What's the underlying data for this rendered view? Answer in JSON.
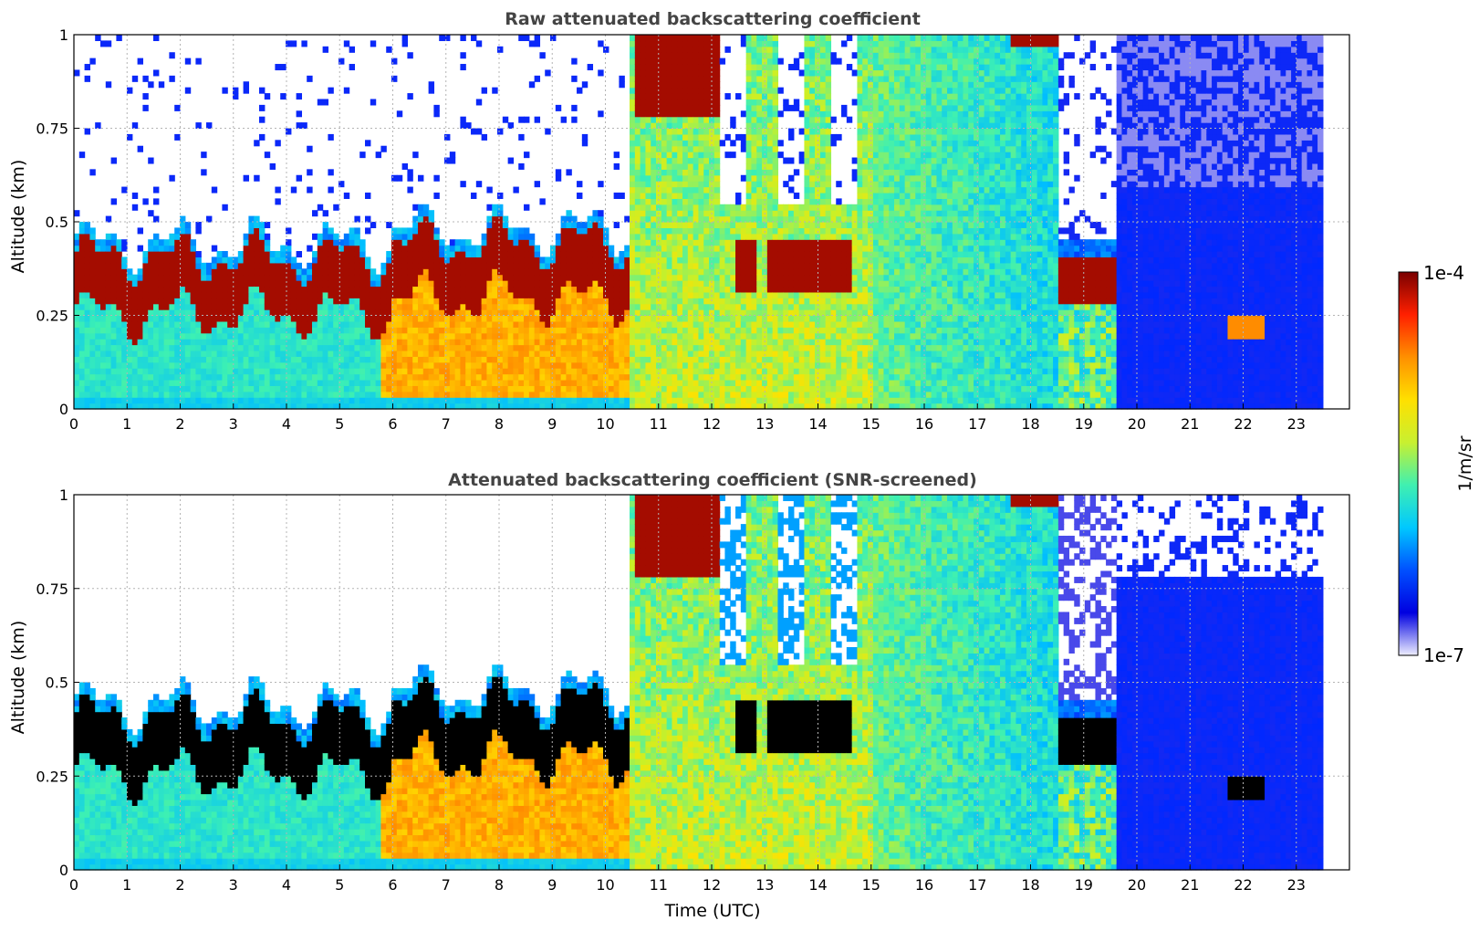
{
  "chart_data": [
    {
      "type": "heatmap",
      "title": "Raw attenuated backscattering coefficient",
      "xlabel": "",
      "ylabel": "Altitude (km)",
      "xlim": [
        0,
        24
      ],
      "ylim": [
        0,
        1
      ],
      "x_ticks": [
        "0",
        "1",
        "2",
        "3",
        "4",
        "5",
        "6",
        "7",
        "8",
        "9",
        "10",
        "11",
        "12",
        "13",
        "14",
        "15",
        "16",
        "17",
        "18",
        "19",
        "20",
        "21",
        "22",
        "23"
      ],
      "y_ticks": [
        "0",
        "0.25",
        "0.5",
        "0.75",
        "1"
      ],
      "grid": true,
      "data_end_hour": 23.5,
      "color_scale": "log",
      "cmap": "jet",
      "layers_description": [
        {
          "feature": "boundary layer aerosol top (max)",
          "t_start": 0,
          "t_end": 10.5,
          "altitude_km": [
            0.22,
            0.45
          ],
          "level": "1e-4"
        },
        {
          "feature": "low cloud",
          "t_start": 10.6,
          "t_end": 12.1,
          "altitude_km": [
            0.8,
            1.0
          ],
          "level": "1e-4"
        },
        {
          "feature": "low cloud",
          "t_start": 18.5,
          "t_end": 19.4,
          "altitude_km": [
            0.28,
            0.4
          ],
          "level": "1e-4"
        },
        {
          "feature": "elevated layer",
          "t_start": 21.7,
          "t_end": 22.4,
          "altitude_km": [
            0.2,
            0.26
          ],
          "level": "3e-5"
        }
      ]
    },
    {
      "type": "heatmap",
      "title": "Attenuated backscattering coefficient (SNR-screened)",
      "xlabel": "Time (UTC)",
      "ylabel": "Altitude (km)",
      "xlim": [
        0,
        24
      ],
      "ylim": [
        0,
        1
      ],
      "x_ticks": [
        "0",
        "1",
        "2",
        "3",
        "4",
        "5",
        "6",
        "7",
        "8",
        "9",
        "10",
        "11",
        "12",
        "13",
        "14",
        "15",
        "16",
        "17",
        "18",
        "19",
        "20",
        "21",
        "22",
        "23"
      ],
      "y_ticks": [
        "0",
        "0.25",
        "0.5",
        "0.75",
        "1"
      ],
      "grid": true,
      "data_end_hour": 23.5,
      "color_scale": "log",
      "cmap": "jet",
      "saturated_color": "#000000"
    }
  ],
  "colorbar": {
    "label": "1/m/sr",
    "max_label": "1e-4",
    "min_label": "1e-7",
    "stops": [
      "#eeeeff",
      "#0000e0",
      "#0050ff",
      "#00c8ff",
      "#40f0b0",
      "#c8f030",
      "#ffe000",
      "#ff9000",
      "#ff2000",
      "#7a0000"
    ]
  }
}
